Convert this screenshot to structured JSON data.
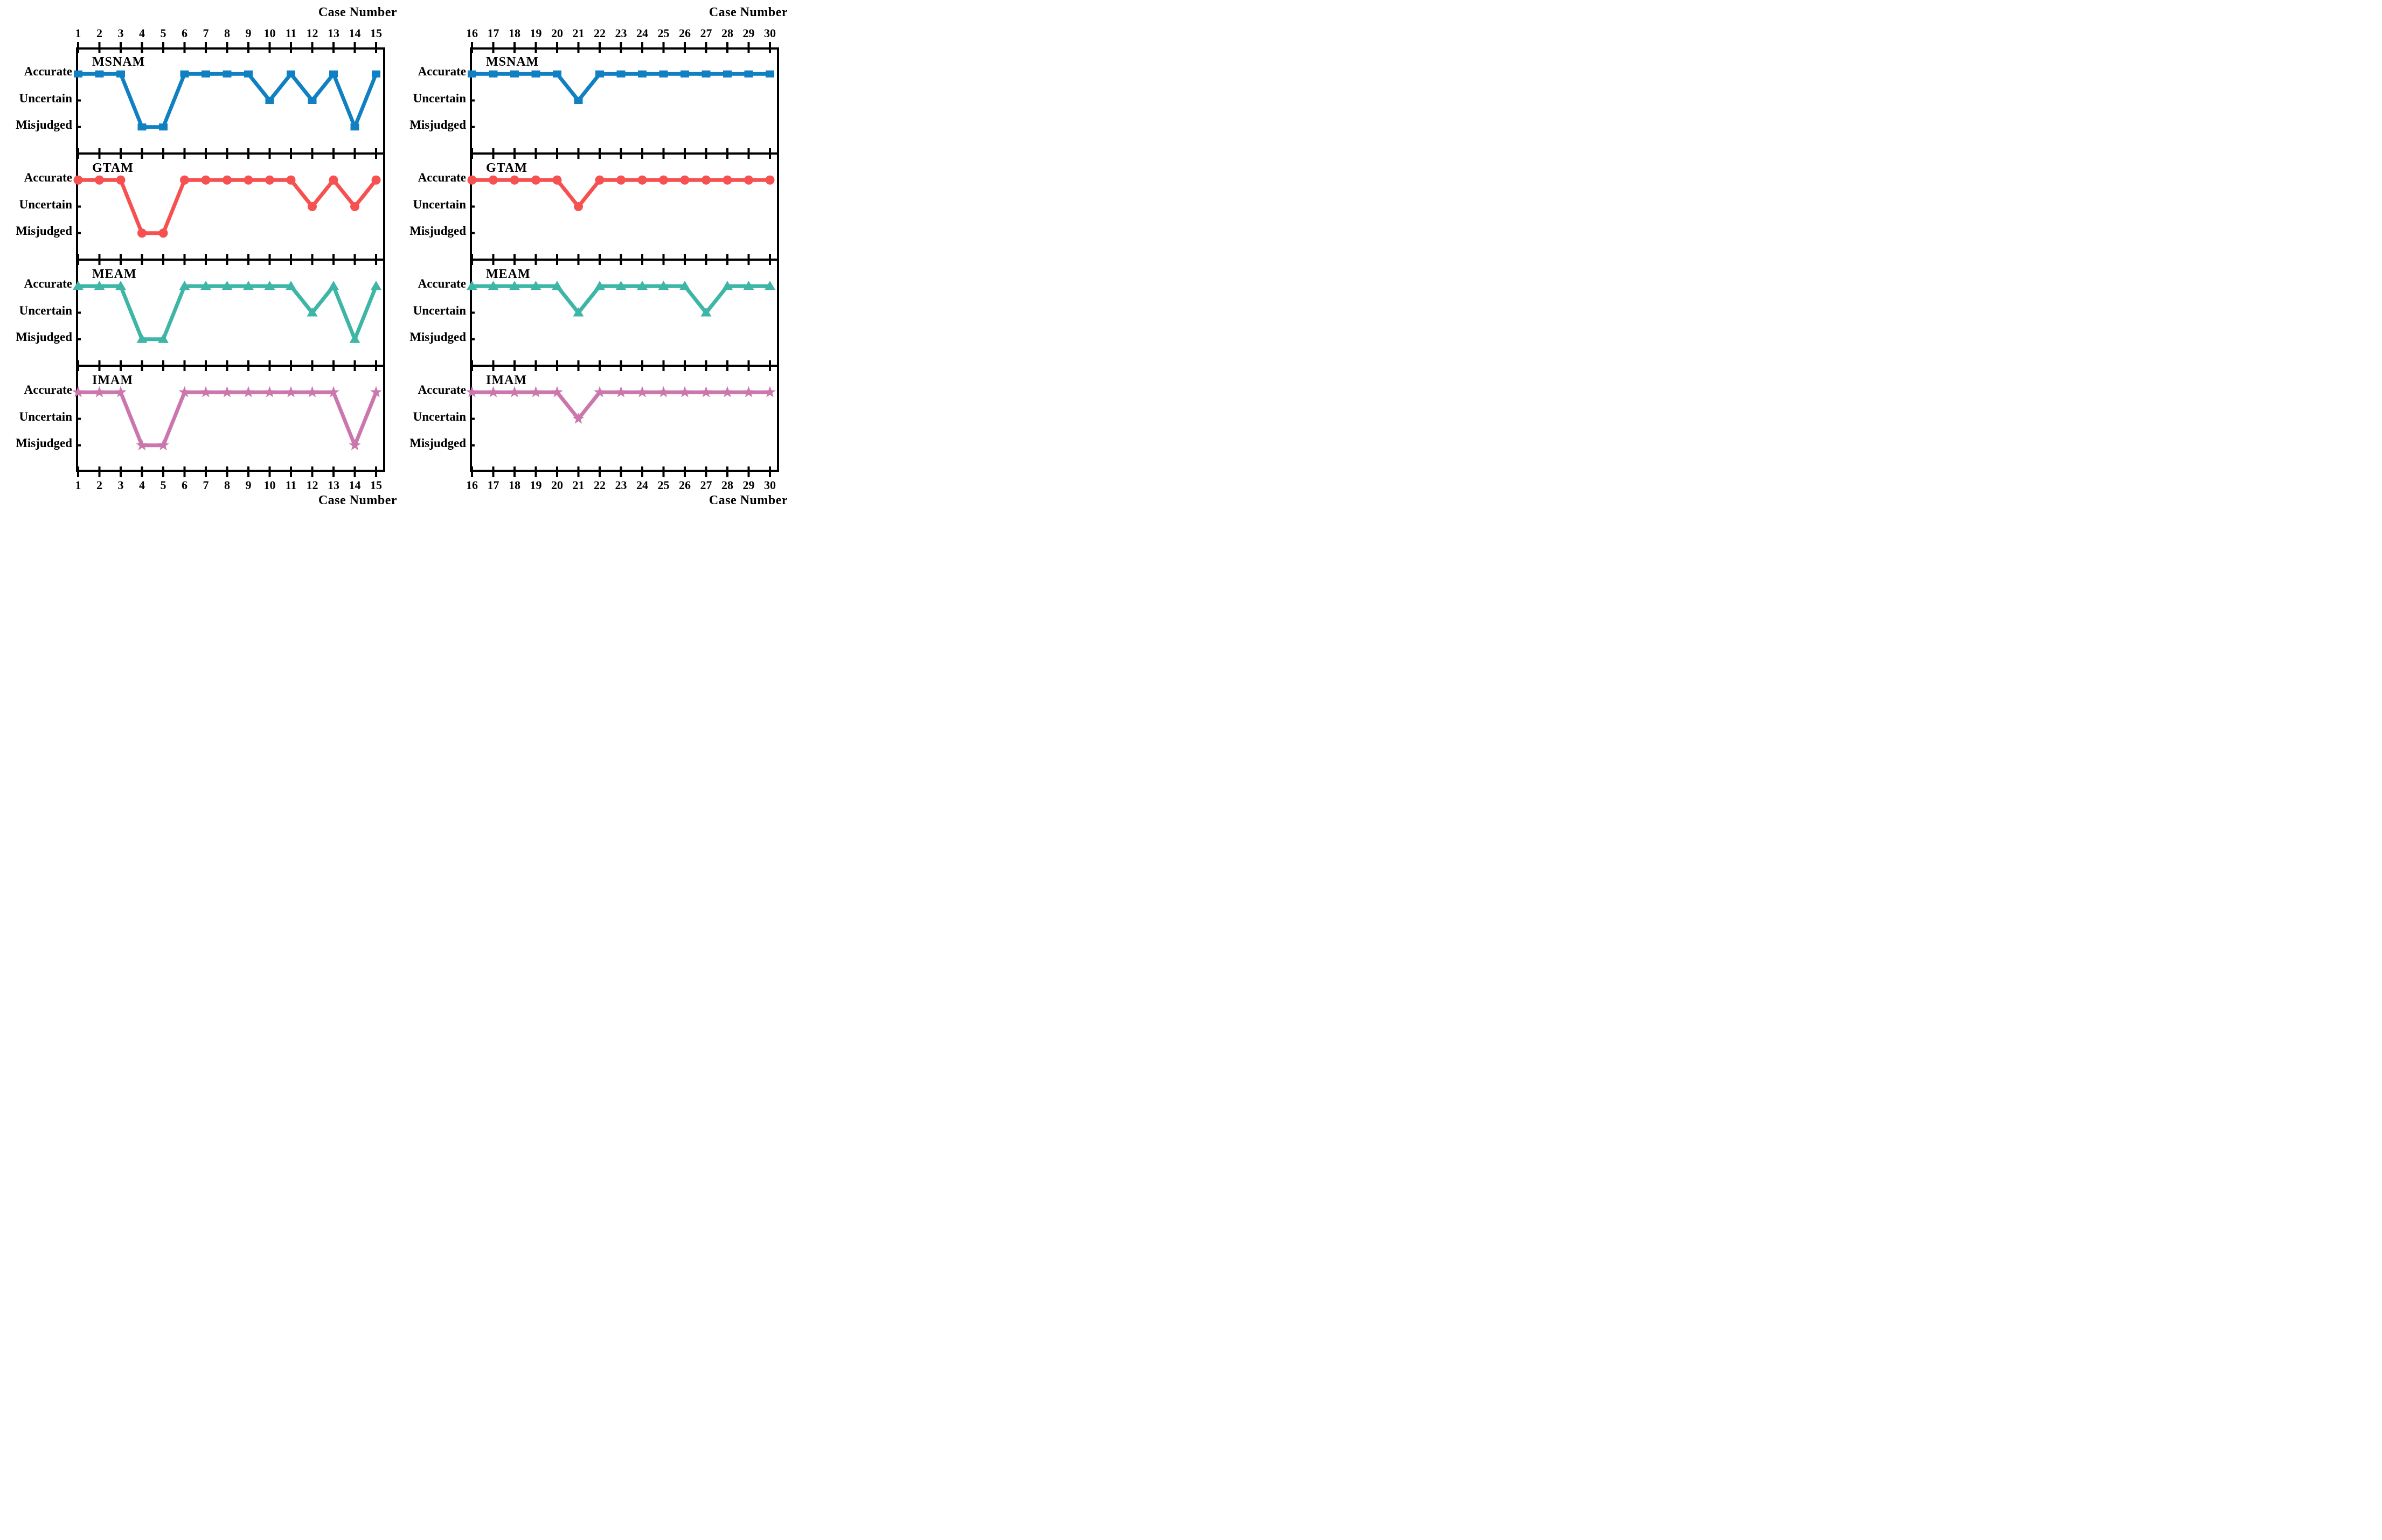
{
  "figure": {
    "background": "#ffffff",
    "x_axis_title": "Case Number",
    "y_tick_labels": [
      "Accurate",
      "Uncertain",
      "Misjudged"
    ],
    "methods": [
      {
        "name": "MSNAM",
        "color": "#1180c2",
        "marker": "square"
      },
      {
        "name": "GTAM",
        "color": "#f65150",
        "marker": "circle"
      },
      {
        "name": "MEAM",
        "color": "#3eb6a6",
        "marker": "triangle"
      },
      {
        "name": "IMAM",
        "color": "#cb77ae",
        "marker": "star"
      }
    ]
  },
  "chart_data": {
    "type": "line",
    "x_axis_title": "Case Number",
    "ylabel": "",
    "y_levels": [
      "Accurate",
      "Uncertain",
      "Misjudged"
    ],
    "legend_position": "none",
    "grid": false,
    "columns": [
      {
        "cases": [
          1,
          2,
          3,
          4,
          5,
          6,
          7,
          8,
          9,
          10,
          11,
          12,
          13,
          14,
          15
        ],
        "series": [
          {
            "name": "MSNAM",
            "marker": "square",
            "color": "#1180c2",
            "values": [
              "Accurate",
              "Accurate",
              "Accurate",
              "Misjudged",
              "Misjudged",
              "Accurate",
              "Accurate",
              "Accurate",
              "Accurate",
              "Uncertain",
              "Accurate",
              "Uncertain",
              "Accurate",
              "Misjudged",
              "Accurate"
            ]
          },
          {
            "name": "GTAM",
            "marker": "circle",
            "color": "#f65150",
            "values": [
              "Accurate",
              "Accurate",
              "Accurate",
              "Misjudged",
              "Misjudged",
              "Accurate",
              "Accurate",
              "Accurate",
              "Accurate",
              "Accurate",
              "Accurate",
              "Uncertain",
              "Accurate",
              "Uncertain",
              "Accurate"
            ]
          },
          {
            "name": "MEAM",
            "marker": "triangle",
            "color": "#3eb6a6",
            "values": [
              "Accurate",
              "Accurate",
              "Accurate",
              "Misjudged",
              "Misjudged",
              "Accurate",
              "Accurate",
              "Accurate",
              "Accurate",
              "Accurate",
              "Accurate",
              "Uncertain",
              "Accurate",
              "Misjudged",
              "Accurate"
            ]
          },
          {
            "name": "IMAM",
            "marker": "star",
            "color": "#cb77ae",
            "values": [
              "Accurate",
              "Accurate",
              "Accurate",
              "Misjudged",
              "Misjudged",
              "Accurate",
              "Accurate",
              "Accurate",
              "Accurate",
              "Accurate",
              "Accurate",
              "Accurate",
              "Accurate",
              "Misjudged",
              "Accurate"
            ]
          }
        ]
      },
      {
        "cases": [
          16,
          17,
          18,
          19,
          20,
          21,
          22,
          23,
          24,
          25,
          26,
          27,
          28,
          29,
          30
        ],
        "series": [
          {
            "name": "MSNAM",
            "marker": "square",
            "color": "#1180c2",
            "values": [
              "Accurate",
              "Accurate",
              "Accurate",
              "Accurate",
              "Accurate",
              "Uncertain",
              "Accurate",
              "Accurate",
              "Accurate",
              "Accurate",
              "Accurate",
              "Accurate",
              "Accurate",
              "Accurate",
              "Accurate"
            ]
          },
          {
            "name": "GTAM",
            "marker": "circle",
            "color": "#f65150",
            "values": [
              "Accurate",
              "Accurate",
              "Accurate",
              "Accurate",
              "Accurate",
              "Uncertain",
              "Accurate",
              "Accurate",
              "Accurate",
              "Accurate",
              "Accurate",
              "Accurate",
              "Accurate",
              "Accurate",
              "Accurate"
            ]
          },
          {
            "name": "MEAM",
            "marker": "triangle",
            "color": "#3eb6a6",
            "values": [
              "Accurate",
              "Accurate",
              "Accurate",
              "Accurate",
              "Accurate",
              "Uncertain",
              "Accurate",
              "Accurate",
              "Accurate",
              "Accurate",
              "Accurate",
              "Uncertain",
              "Accurate",
              "Accurate",
              "Accurate"
            ]
          },
          {
            "name": "IMAM",
            "marker": "star",
            "color": "#cb77ae",
            "values": [
              "Accurate",
              "Accurate",
              "Accurate",
              "Accurate",
              "Accurate",
              "Uncertain",
              "Accurate",
              "Accurate",
              "Accurate",
              "Accurate",
              "Accurate",
              "Accurate",
              "Accurate",
              "Accurate",
              "Accurate"
            ]
          }
        ]
      }
    ]
  }
}
